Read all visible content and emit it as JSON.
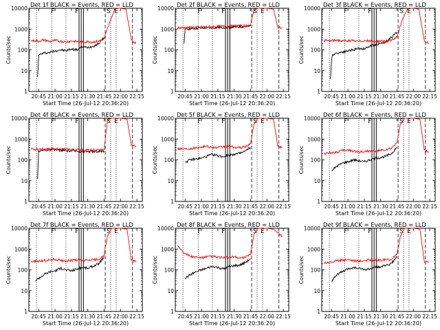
{
  "figure": {
    "time_axis": {
      "tick_labels": [
        "20:45",
        "21:00",
        "21:15",
        "21:30",
        "21:45",
        "22:00",
        "22:15"
      ],
      "tick_minutes": [
        1245,
        1260,
        1275,
        1290,
        1305,
        1320,
        1335
      ],
      "range_minutes": [
        1236,
        1340
      ]
    },
    "y_axis": {
      "scale": "log",
      "range": [
        1,
        10000
      ],
      "tick_labels": [
        "1",
        "10",
        "100",
        "1000",
        "10000"
      ]
    },
    "ylabel": "Counts/sec",
    "xlabel": "Start Time (26-Jul-12 20:36:20)",
    "event_colors": {
      "events": "#000000",
      "lld": "#ff0000"
    },
    "markers": [
      {
        "t": 1243,
        "style": "dotted"
      },
      {
        "t": 1257,
        "style": "dotted"
      },
      {
        "t": 1270,
        "style": "dotted"
      },
      {
        "t": 1282,
        "style": "solid"
      },
      {
        "t": 1284,
        "style": "solid"
      },
      {
        "t": 1286,
        "style": "solid"
      },
      {
        "t": 1306,
        "style": "dashed"
      },
      {
        "t": 1311,
        "style": "dotted"
      },
      {
        "t": 1316,
        "style": "dotted"
      },
      {
        "t": 1331,
        "style": "dashed"
      }
    ],
    "marker_labels": [
      {
        "text": "F",
        "t": 1258
      },
      {
        "text": "F",
        "t": 1280
      },
      {
        "text": "S",
        "t": 1309
      },
      {
        "text": "E",
        "t": 1316
      }
    ]
  },
  "chart_data": [
    {
      "type": "line",
      "title": "Det 1f BLACK = Events, RED = LLD",
      "xlabel": "Start Time (26-Jul-12 20:36:20)",
      "ylabel": "Counts/sec",
      "series": [
        {
          "name": "Events",
          "color": "#000000",
          "x": [
            1244,
            1245,
            1246,
            1250,
            1255,
            1260,
            1265,
            1270,
            1275,
            1280,
            1285,
            1290,
            1295,
            1300,
            1305
          ],
          "y": [
            5,
            50,
            60,
            70,
            75,
            90,
            100,
            90,
            110,
            100,
            140,
            130,
            150,
            200,
            400
          ]
        },
        {
          "name": "LLD",
          "color": "#ff0000",
          "x": [
            1238,
            1245,
            1250,
            1255,
            1260,
            1265,
            1270,
            1275,
            1280,
            1285,
            1290,
            1295,
            1300,
            1305,
            1310,
            1315,
            1320,
            1325,
            1330,
            1334
          ],
          "y": [
            280,
            260,
            300,
            250,
            280,
            260,
            240,
            270,
            250,
            230,
            250,
            240,
            260,
            350,
            2000,
            10000,
            10000,
            9000,
            300,
            200
          ]
        }
      ]
    },
    {
      "type": "line",
      "title": "Det 2f BLACK = Events, RED = LLD",
      "xlabel": "Start Time (26-Jul-12 20:36:20)",
      "ylabel": "Counts/sec",
      "series": [
        {
          "name": "Events",
          "color": "#000000",
          "x": [
            1244,
            1245,
            1250,
            1260,
            1270,
            1280,
            1290,
            1300,
            1305
          ],
          "y": [
            200,
            1000,
            1050,
            1100,
            1150,
            1200,
            1250,
            1300,
            1400
          ]
        },
        {
          "name": "LLD",
          "color": "#ff0000",
          "x": [
            1238,
            1245,
            1250,
            1260,
            1270,
            1280,
            1290,
            1300,
            1305,
            1308,
            1312,
            1320,
            1326,
            1330,
            1334
          ],
          "y": [
            1150,
            1150,
            1200,
            1250,
            1300,
            1350,
            1400,
            1450,
            1500,
            8000,
            10000,
            10000,
            9000,
            1200,
            1200
          ]
        }
      ]
    },
    {
      "type": "line",
      "title": "Det 3f BLACK = Events, RED = LLD",
      "xlabel": "Start Time (26-Jul-12 20:36:20)",
      "ylabel": "Counts/sec",
      "series": [
        {
          "name": "Events",
          "color": "#000000",
          "x": [
            1244,
            1245,
            1246,
            1250,
            1255,
            1260,
            1265,
            1270,
            1275,
            1280,
            1285,
            1290,
            1295,
            1300,
            1305
          ],
          "y": [
            4,
            30,
            60,
            70,
            80,
            90,
            100,
            120,
            110,
            150,
            180,
            200,
            250,
            400,
            700
          ]
        },
        {
          "name": "LLD",
          "color": "#ff0000",
          "x": [
            1238,
            1245,
            1250,
            1255,
            1260,
            1265,
            1270,
            1275,
            1280,
            1285,
            1290,
            1295,
            1300,
            1305,
            1310,
            1315,
            1320,
            1325,
            1330,
            1334
          ],
          "y": [
            280,
            270,
            300,
            260,
            280,
            270,
            250,
            280,
            260,
            250,
            270,
            260,
            280,
            400,
            3000,
            10000,
            10000,
            9000,
            280,
            200
          ]
        }
      ]
    },
    {
      "type": "line",
      "title": "Det 4f BLACK = Events, RED = LLD",
      "xlabel": "Start Time (26-Jul-12 20:36:20)",
      "ylabel": "Counts/sec",
      "series": [
        {
          "name": "Events",
          "color": "#000000",
          "x": [
            1244,
            1245,
            1250,
            1260,
            1270,
            1280,
            1290,
            1300,
            1305
          ],
          "y": [
            12,
            280,
            290,
            300,
            280,
            260,
            250,
            240,
            270
          ]
        },
        {
          "name": "LLD",
          "color": "#ff0000",
          "x": [
            1238,
            1245,
            1250,
            1260,
            1270,
            1280,
            1290,
            1300,
            1305,
            1308,
            1312,
            1320,
            1326,
            1330,
            1334
          ],
          "y": [
            320,
            320,
            330,
            340,
            320,
            300,
            290,
            290,
            310,
            8000,
            10000,
            10000,
            9000,
            500,
            450
          ]
        }
      ]
    },
    {
      "type": "line",
      "title": "Det 5f BLACK = Events, RED = LLD",
      "xlabel": "Start Time (26-Jul-12 20:36:20)",
      "ylabel": "Counts/sec",
      "series": [
        {
          "name": "Events",
          "color": "#000000",
          "x": [
            1245,
            1250,
            1255,
            1260,
            1265,
            1270,
            1275,
            1280,
            1285,
            1290,
            1295,
            1300,
            1305
          ],
          "y": [
            80,
            100,
            110,
            120,
            150,
            180,
            160,
            140,
            170,
            190,
            200,
            260,
            400
          ]
        },
        {
          "name": "LLD",
          "color": "#ff0000",
          "x": [
            1238,
            1245,
            1250,
            1255,
            1260,
            1265,
            1270,
            1275,
            1280,
            1285,
            1290,
            1295,
            1300,
            1305,
            1308,
            1312,
            1320,
            1326,
            1330,
            1334
          ],
          "y": [
            350,
            340,
            360,
            380,
            420,
            450,
            400,
            380,
            420,
            450,
            400,
            380,
            420,
            600,
            5000,
            10000,
            10000,
            9000,
            450,
            400
          ]
        }
      ]
    },
    {
      "type": "line",
      "title": "Det 6f BLACK = Events, RED = LLD",
      "xlabel": "Start Time (26-Jul-12 20:36:20)",
      "ylabel": "Counts/sec",
      "series": [
        {
          "name": "Events",
          "color": "#000000",
          "x": [
            1245,
            1250,
            1255,
            1260,
            1265,
            1270,
            1275,
            1280,
            1285,
            1290,
            1295,
            1300,
            1305
          ],
          "y": [
            30,
            50,
            70,
            80,
            100,
            90,
            80,
            100,
            120,
            130,
            150,
            200,
            400
          ]
        },
        {
          "name": "LLD",
          "color": "#ff0000",
          "x": [
            1238,
            1245,
            1250,
            1255,
            1260,
            1265,
            1270,
            1275,
            1280,
            1285,
            1290,
            1295,
            1300,
            1305,
            1308,
            1312,
            1320,
            1326,
            1330,
            1334
          ],
          "y": [
            200,
            220,
            240,
            280,
            300,
            260,
            240,
            250,
            270,
            260,
            280,
            300,
            350,
            700,
            5000,
            10000,
            10000,
            9000,
            300,
            220
          ]
        }
      ]
    },
    {
      "type": "line",
      "title": "Det 7f BLACK = Events, RED = LLD",
      "xlabel": "Start Time (26-Jul-12 20:36:20)",
      "ylabel": "Counts/sec",
      "series": [
        {
          "name": "Events",
          "color": "#000000",
          "x": [
            1242,
            1245,
            1250,
            1255,
            1260,
            1265,
            1270,
            1275,
            1280,
            1285,
            1290,
            1295,
            1300,
            1305
          ],
          "y": [
            30,
            40,
            60,
            80,
            90,
            120,
            100,
            90,
            110,
            130,
            120,
            150,
            200,
            400
          ]
        },
        {
          "name": "LLD",
          "color": "#ff0000",
          "x": [
            1238,
            1245,
            1250,
            1255,
            1260,
            1265,
            1270,
            1275,
            1280,
            1285,
            1290,
            1295,
            1300,
            1305,
            1308,
            1312,
            1320,
            1326,
            1330,
            1334
          ],
          "y": [
            250,
            260,
            280,
            300,
            320,
            280,
            270,
            290,
            300,
            280,
            290,
            300,
            320,
            500,
            4000,
            10000,
            10000,
            9000,
            280,
            250
          ]
        }
      ]
    },
    {
      "type": "line",
      "title": "Det 8f BLACK = Events, RED = LLD",
      "xlabel": "Start Time (26-Jul-12 20:36:20)",
      "ylabel": "Counts/sec",
      "series": [
        {
          "name": "Events",
          "color": "#000000",
          "x": [
            1245,
            1250,
            1255,
            1260,
            1265,
            1270,
            1275,
            1280,
            1285,
            1290,
            1295,
            1300,
            1305
          ],
          "y": [
            40,
            60,
            80,
            100,
            120,
            150,
            130,
            110,
            140,
            160,
            170,
            220,
            350
          ]
        },
        {
          "name": "LLD",
          "color": "#ff0000",
          "x": [
            1238,
            1242,
            1245,
            1250,
            1255,
            1260,
            1265,
            1270,
            1275,
            1280,
            1285,
            1290,
            1295,
            1300,
            1305,
            1308,
            1312,
            1320,
            1326,
            1330,
            1334
          ],
          "y": [
            1500,
            900,
            600,
            450,
            400,
            380,
            420,
            450,
            400,
            380,
            400,
            420,
            380,
            400,
            550,
            5000,
            10000,
            10000,
            9000,
            6000,
            4000
          ]
        }
      ]
    },
    {
      "type": "line",
      "title": "Det 9f BLACK = Events, RED = LLD",
      "xlabel": "Start Time (26-Jul-12 20:36:20)",
      "ylabel": "Counts/sec",
      "series": [
        {
          "name": "Events",
          "color": "#000000",
          "x": [
            1245,
            1250,
            1255,
            1260,
            1265,
            1270,
            1275,
            1280,
            1285,
            1290,
            1295,
            1300,
            1305
          ],
          "y": [
            30,
            60,
            80,
            110,
            130,
            120,
            100,
            110,
            130,
            140,
            160,
            210,
            400
          ]
        },
        {
          "name": "LLD",
          "color": "#ff0000",
          "x": [
            1238,
            1245,
            1250,
            1255,
            1260,
            1265,
            1270,
            1275,
            1280,
            1285,
            1290,
            1295,
            1300,
            1305,
            1308,
            1312,
            1320,
            1326,
            1330,
            1334
          ],
          "y": [
            220,
            240,
            270,
            300,
            320,
            280,
            260,
            280,
            300,
            280,
            290,
            300,
            320,
            550,
            4000,
            10000,
            10000,
            9000,
            260,
            240
          ]
        }
      ]
    }
  ]
}
